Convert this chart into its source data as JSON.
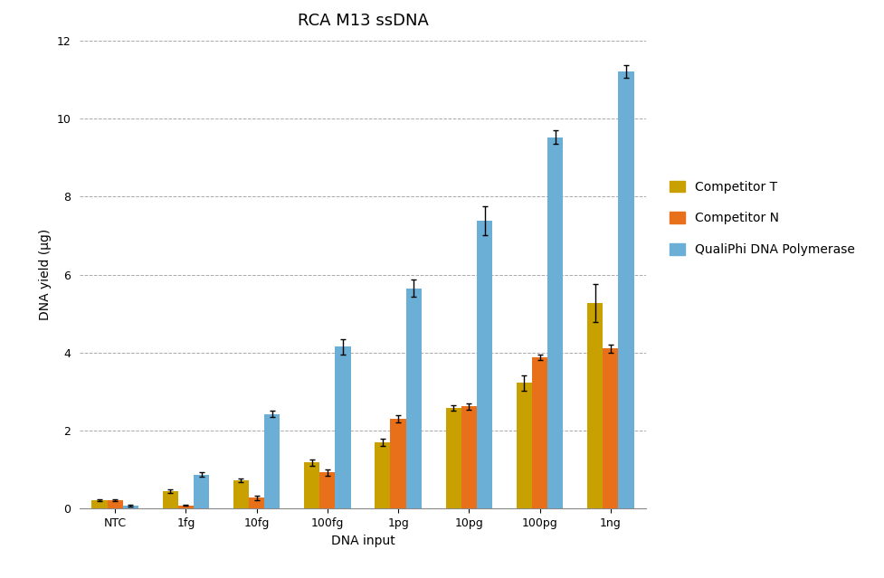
{
  "title": "RCA M13 ssDNA",
  "xlabel": "DNA input",
  "ylabel": "DNA yield (µg)",
  "categories": [
    "NTC",
    "1fg",
    "10fg",
    "100fg",
    "1pg",
    "10pg",
    "100pg",
    "1ng"
  ],
  "competitor_T": [
    0.22,
    0.45,
    0.73,
    1.18,
    1.7,
    2.57,
    3.22,
    5.27
  ],
  "competitor_N": [
    0.22,
    0.08,
    0.28,
    0.93,
    2.3,
    2.62,
    3.88,
    4.1
  ],
  "qualiphi": [
    0.07,
    0.87,
    2.43,
    4.15,
    5.65,
    7.38,
    9.52,
    11.2
  ],
  "err_T": [
    0.03,
    0.05,
    0.05,
    0.08,
    0.1,
    0.07,
    0.2,
    0.48
  ],
  "err_N": [
    0.02,
    0.01,
    0.06,
    0.08,
    0.1,
    0.08,
    0.08,
    0.1
  ],
  "err_Q": [
    0.02,
    0.06,
    0.08,
    0.2,
    0.22,
    0.38,
    0.18,
    0.16
  ],
  "color_T": "#C8A000",
  "color_N": "#E8701A",
  "color_Q": "#6BAED6",
  "ylim": [
    0,
    12
  ],
  "yticks": [
    0,
    2,
    4,
    6,
    8,
    10,
    12
  ],
  "bar_width": 0.22,
  "title_fontsize": 13,
  "axis_label_fontsize": 10,
  "tick_fontsize": 9,
  "legend_fontsize": 10,
  "background_color": "#FFFFFF"
}
